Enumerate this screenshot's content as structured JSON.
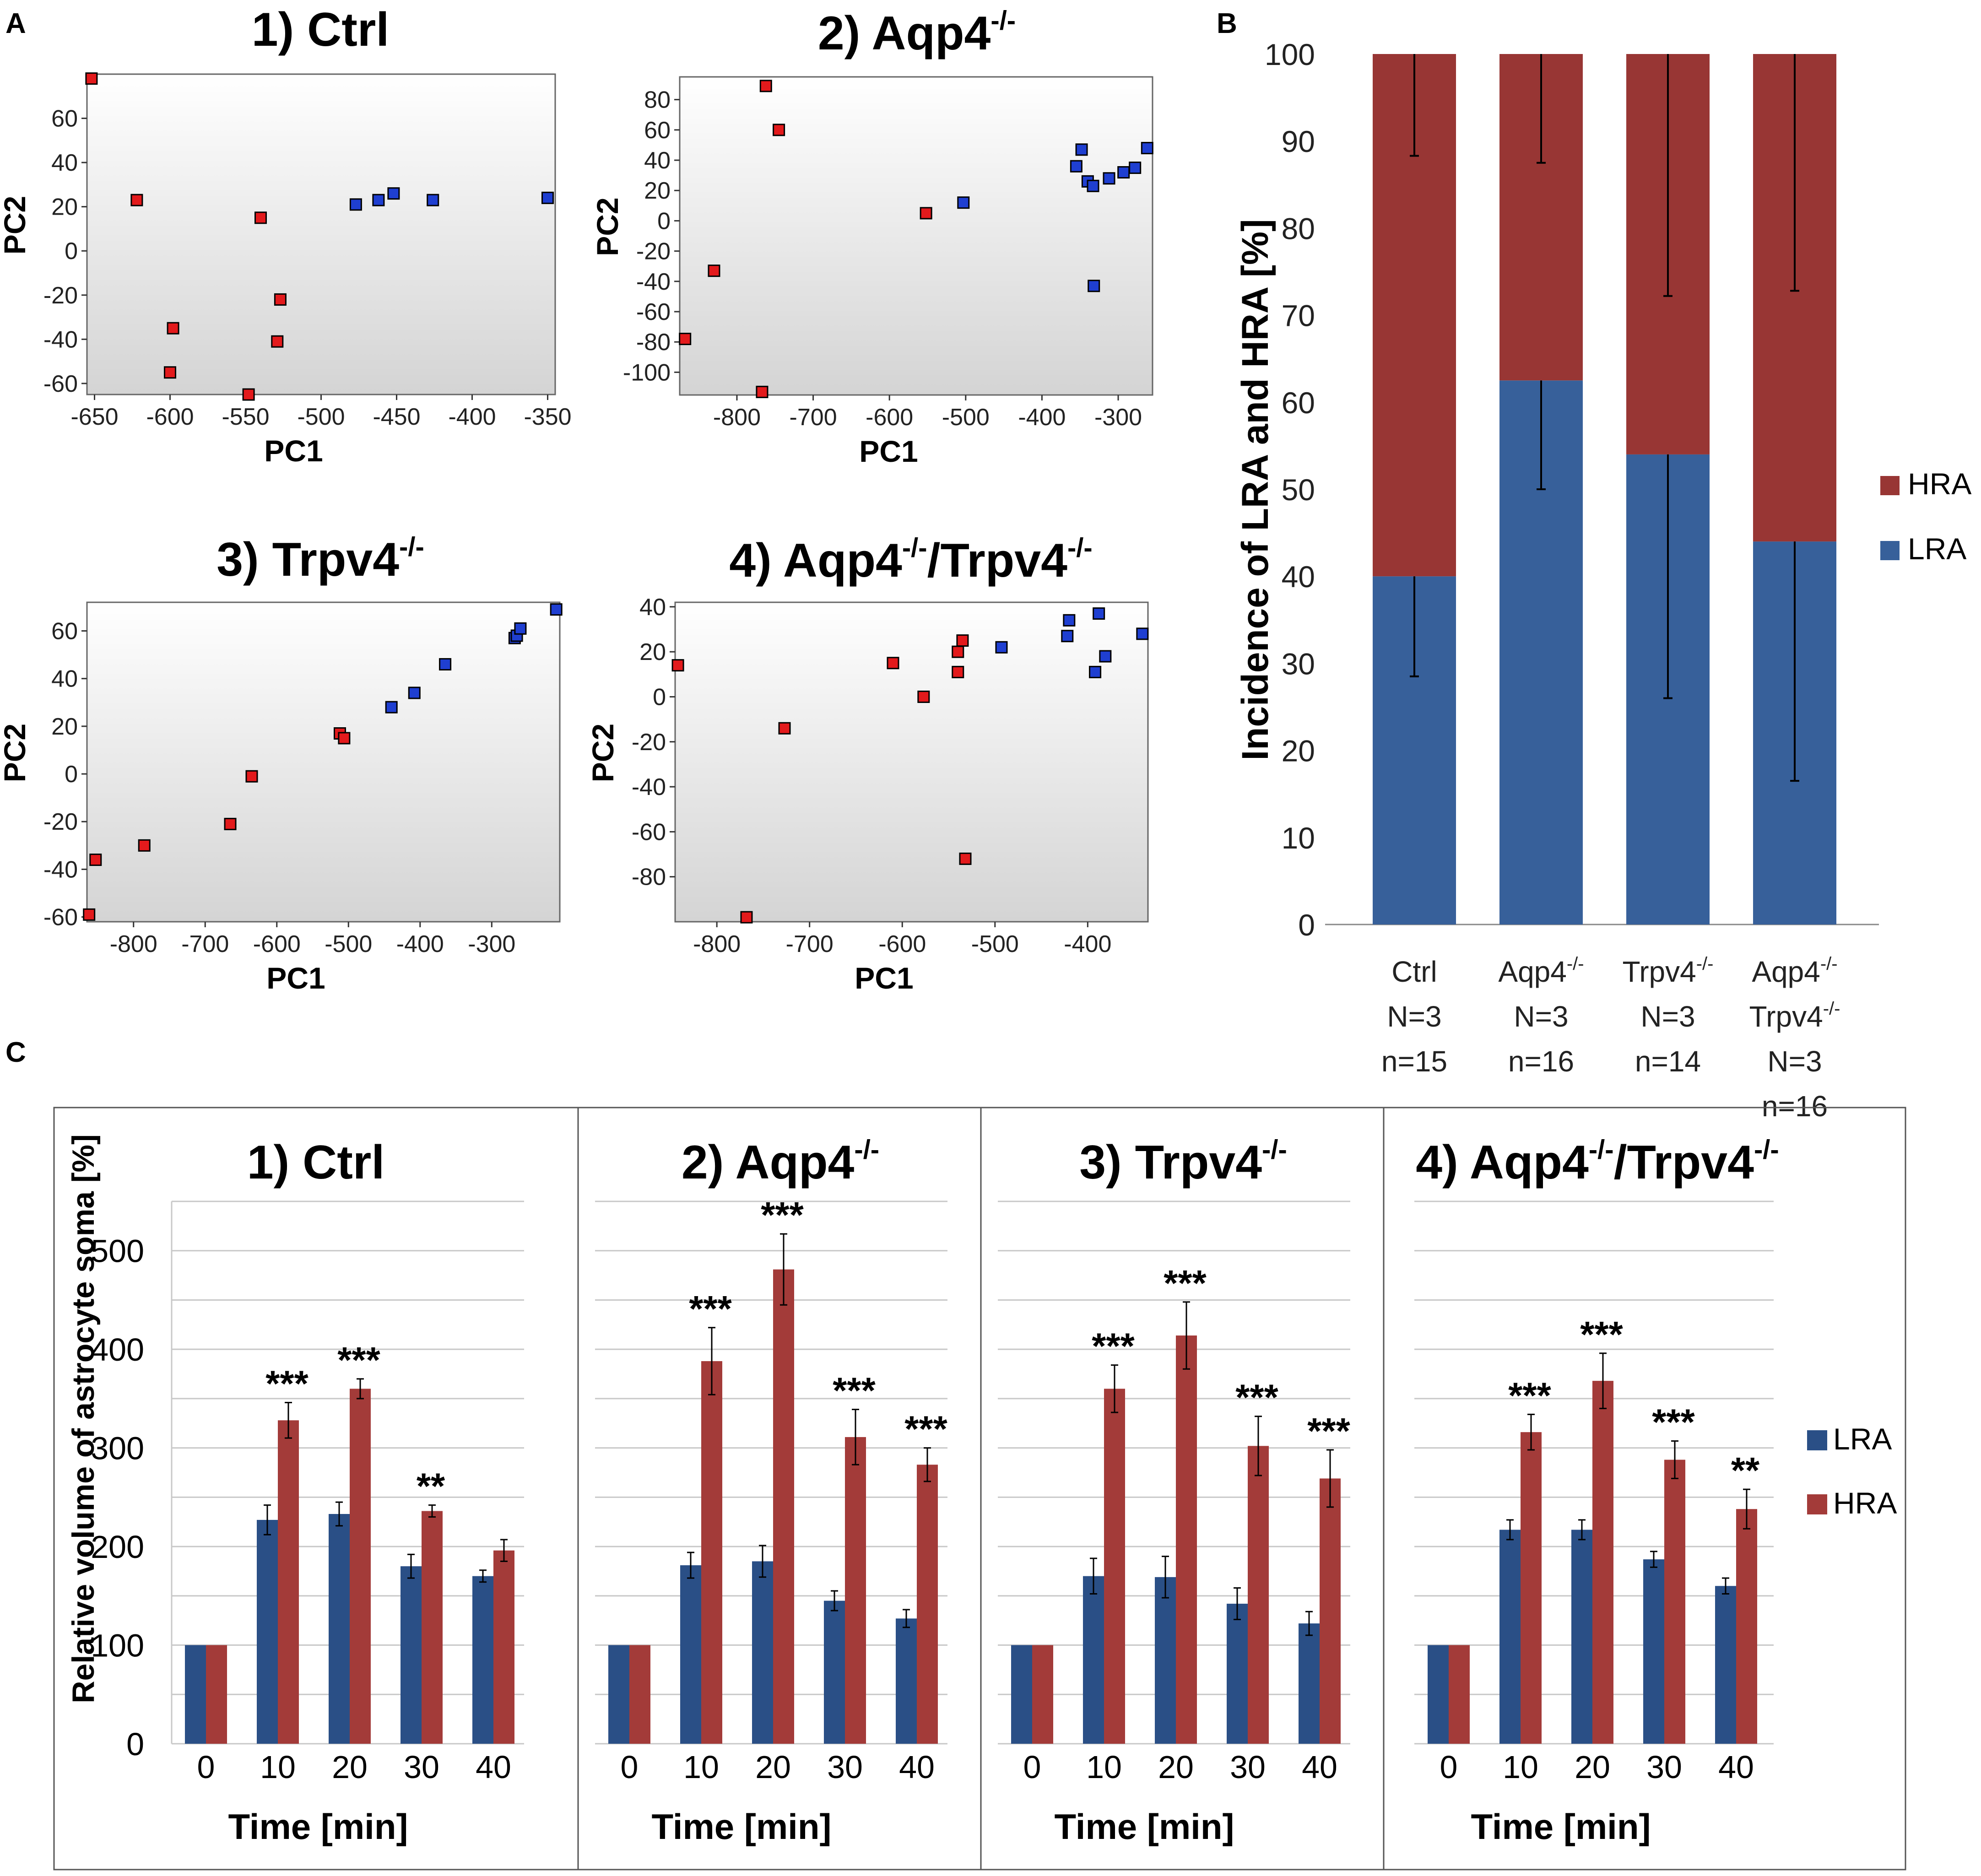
{
  "panel_labels": {
    "a": "A",
    "b": "B",
    "c": "C"
  },
  "colors": {
    "red": "#e31a1c",
    "blue": "#1f3fd1",
    "lra": "#37609a",
    "hra": "#983634",
    "lra_c": "#2a4f86",
    "hra_c": "#a33b39"
  },
  "chart_data": [
    {
      "panel": "A1",
      "type": "scatter",
      "title": {
        "prefix": "1) Ctrl",
        "parts": []
      },
      "xlabel": "PC1",
      "ylabel": "PC2",
      "xlim": [
        -655,
        -345
      ],
      "ylim": [
        -65,
        80
      ],
      "xticks": [
        -650,
        -600,
        -550,
        -500,
        -450,
        -400,
        -350
      ],
      "yticks": [
        -60,
        -40,
        -20,
        0,
        20,
        40,
        60
      ],
      "series": [
        {
          "name": "HRA",
          "color": "#e31a1c",
          "points": [
            [
              -652,
              78
            ],
            [
              -622,
              23
            ],
            [
              -598,
              -35
            ],
            [
              -600,
              -55
            ],
            [
              -548,
              -65
            ],
            [
              -540,
              15
            ],
            [
              -527,
              -22
            ],
            [
              -529,
              -41
            ]
          ]
        },
        {
          "name": "LRA",
          "color": "#1f3fd1",
          "points": [
            [
              -477,
              21
            ],
            [
              -462,
              23
            ],
            [
              -452,
              26
            ],
            [
              -426,
              23
            ],
            [
              -350,
              24
            ]
          ]
        }
      ]
    },
    {
      "panel": "A2",
      "type": "scatter",
      "title": {
        "prefix": "2) Aqp4",
        "parts": [
          "-/-"
        ]
      },
      "xlabel": "PC1",
      "ylabel": "PC2",
      "xlim": [
        -875,
        -255
      ],
      "ylim": [
        -115,
        95
      ],
      "xticks": [
        -800,
        -700,
        -600,
        -500,
        -400,
        -300
      ],
      "yticks": [
        -100,
        -80,
        -60,
        -40,
        -20,
        0,
        20,
        40,
        60,
        80
      ],
      "series": [
        {
          "name": "HRA",
          "color": "#e31a1c",
          "points": [
            [
              -868,
              -78
            ],
            [
              -830,
              -33
            ],
            [
              -762,
              89
            ],
            [
              -745,
              60
            ],
            [
              -767,
              -113
            ],
            [
              -552,
              5
            ]
          ]
        },
        {
          "name": "LRA",
          "color": "#1f3fd1",
          "points": [
            [
              -503,
              12
            ],
            [
              -355,
              36
            ],
            [
              -348,
              47
            ],
            [
              -340,
              26
            ],
            [
              -333,
              23
            ],
            [
              -332,
              -43
            ],
            [
              -312,
              28
            ],
            [
              -293,
              32
            ],
            [
              -278,
              35
            ],
            [
              -262,
              48
            ]
          ]
        }
      ]
    },
    {
      "panel": "A3",
      "type": "scatter",
      "title": {
        "prefix": "3) Trpv4",
        "parts": [
          "-/-"
        ]
      },
      "xlabel": "PC1",
      "ylabel": "PC2",
      "xlim": [
        -865,
        -205
      ],
      "ylim": [
        -62,
        72
      ],
      "xticks": [
        -800,
        -700,
        -600,
        -500,
        -400,
        -300
      ],
      "yticks": [
        -60,
        -40,
        -20,
        0,
        20,
        40,
        60
      ],
      "series": [
        {
          "name": "HRA",
          "color": "#e31a1c",
          "points": [
            [
              -862,
              -59
            ],
            [
              -853,
              -36
            ],
            [
              -785,
              -30
            ],
            [
              -665,
              -21
            ],
            [
              -635,
              -1
            ],
            [
              -512,
              17
            ],
            [
              -506,
              15
            ]
          ]
        },
        {
          "name": "LRA",
          "color": "#1f3fd1",
          "points": [
            [
              -440,
              28
            ],
            [
              -408,
              34
            ],
            [
              -365,
              46
            ],
            [
              -268,
              57
            ],
            [
              -265,
              58
            ],
            [
              -260,
              61
            ],
            [
              -210,
              69
            ]
          ]
        }
      ]
    },
    {
      "panel": "A4",
      "type": "scatter",
      "title": {
        "prefix": "4) Aqp4",
        "parts": [
          "-/-",
          "/Trpv4",
          "-/-"
        ]
      },
      "xlabel": "PC1",
      "ylabel": "PC2",
      "xlim": [
        -845,
        -335
      ],
      "ylim": [
        -100,
        42
      ],
      "xticks": [
        -800,
        -700,
        -600,
        -500,
        -400
      ],
      "yticks": [
        -80,
        -60,
        -40,
        -20,
        0,
        20,
        40
      ],
      "series": [
        {
          "name": "HRA",
          "color": "#e31a1c",
          "points": [
            [
              -842,
              14
            ],
            [
              -768,
              -98
            ],
            [
              -727,
              -14
            ],
            [
              -610,
              15
            ],
            [
              -577,
              0
            ],
            [
              -540,
              11
            ],
            [
              -540,
              20
            ],
            [
              -535,
              25
            ],
            [
              -532,
              -72
            ]
          ]
        },
        {
          "name": "LRA",
          "color": "#1f3fd1",
          "points": [
            [
              -493,
              22
            ],
            [
              -422,
              27
            ],
            [
              -420,
              34
            ],
            [
              -392,
              11
            ],
            [
              -388,
              37
            ],
            [
              -381,
              18
            ],
            [
              -341,
              28
            ]
          ]
        }
      ]
    },
    {
      "panel": "B",
      "type": "bar",
      "stacked": true,
      "ylabel": "Incidence of LRA and HRA [%]",
      "ylim": [
        0,
        100
      ],
      "yticks": [
        0,
        10,
        20,
        30,
        40,
        50,
        60,
        70,
        80,
        90,
        100
      ],
      "categories": [
        {
          "lines": [
            [
              "Ctrl"
            ],
            [
              "N=3"
            ],
            [
              "n=15"
            ]
          ]
        },
        {
          "lines": [
            [
              "Aqp4",
              "-/-"
            ],
            [
              "N=3"
            ],
            [
              "n=16"
            ]
          ]
        },
        {
          "lines": [
            [
              "Trpv4",
              "-/-"
            ],
            [
              "N=3"
            ],
            [
              "n=14"
            ]
          ]
        },
        {
          "lines": [
            [
              "Aqp4",
              "-/-"
            ],
            [
              "Trpv4",
              "-/-"
            ],
            [
              "N=3"
            ],
            [
              "n=16"
            ]
          ]
        }
      ],
      "series": [
        {
          "name": "LRA",
          "color": "#37609a",
          "values": [
            40,
            62.5,
            54,
            44
          ],
          "error_low": [
            28.5,
            50,
            26,
            16.5
          ]
        },
        {
          "name": "HRA",
          "color": "#983634",
          "values": [
            60,
            37.5,
            46,
            56
          ],
          "error_low": [
            88.3,
            87.5,
            72.2,
            72.8
          ]
        }
      ],
      "legend": [
        "HRA",
        "LRA"
      ]
    },
    {
      "panel": "C",
      "type": "bar",
      "ylabel": "Relative volume of astrocyte soma [%]",
      "xlabel": "Time [min]",
      "ylim": [
        0,
        550
      ],
      "yticks": [
        0,
        100,
        200,
        300,
        400,
        500
      ],
      "categories": [
        "0",
        "10",
        "20",
        "30",
        "40"
      ],
      "legend": [
        "LRA",
        "HRA"
      ],
      "subplots": [
        {
          "title": {
            "prefix": "1) Ctrl",
            "parts": []
          },
          "series": [
            {
              "name": "LRA",
              "values": [
                100,
                227,
                233,
                180,
                170
              ],
              "err": [
                0,
                15,
                12,
                12,
                6
              ]
            },
            {
              "name": "HRA",
              "values": [
                100,
                328,
                360,
                236,
                196
              ],
              "err": [
                0,
                18,
                10,
                6,
                11
              ]
            }
          ],
          "stars": [
            "",
            "***",
            "***",
            "**",
            ""
          ]
        },
        {
          "title": {
            "prefix": "2) Aqp4",
            "parts": [
              "-/-"
            ]
          },
          "series": [
            {
              "name": "LRA",
              "values": [
                100,
                181,
                185,
                145,
                127
              ],
              "err": [
                0,
                13,
                16,
                10,
                9
              ]
            },
            {
              "name": "HRA",
              "values": [
                100,
                388,
                481,
                311,
                283
              ],
              "err": [
                0,
                34,
                36,
                28,
                17
              ]
            }
          ],
          "stars": [
            "",
            "***",
            "***",
            "***",
            "***"
          ]
        },
        {
          "title": {
            "prefix": "3) Trpv4",
            "parts": [
              "-/-"
            ]
          },
          "series": [
            {
              "name": "LRA",
              "values": [
                100,
                170,
                169,
                142,
                122
              ],
              "err": [
                0,
                18,
                21,
                16,
                12
              ]
            },
            {
              "name": "HRA",
              "values": [
                100,
                360,
                414,
                302,
                269
              ],
              "err": [
                0,
                24,
                34,
                30,
                29
              ]
            }
          ],
          "stars": [
            "",
            "***",
            "***",
            "***",
            "***"
          ]
        },
        {
          "title": {
            "prefix": "4) Aqp4",
            "parts": [
              "-/-",
              "/Trpv4",
              "-/-"
            ]
          },
          "series": [
            {
              "name": "LRA",
              "values": [
                100,
                217,
                217,
                187,
                160
              ],
              "err": [
                0,
                10,
                10,
                8,
                8
              ]
            },
            {
              "name": "HRA",
              "values": [
                100,
                316,
                368,
                288,
                238
              ],
              "err": [
                0,
                18,
                28,
                19,
                20
              ]
            }
          ],
          "stars": [
            "",
            "***",
            "***",
            "***",
            "**"
          ]
        }
      ]
    }
  ]
}
